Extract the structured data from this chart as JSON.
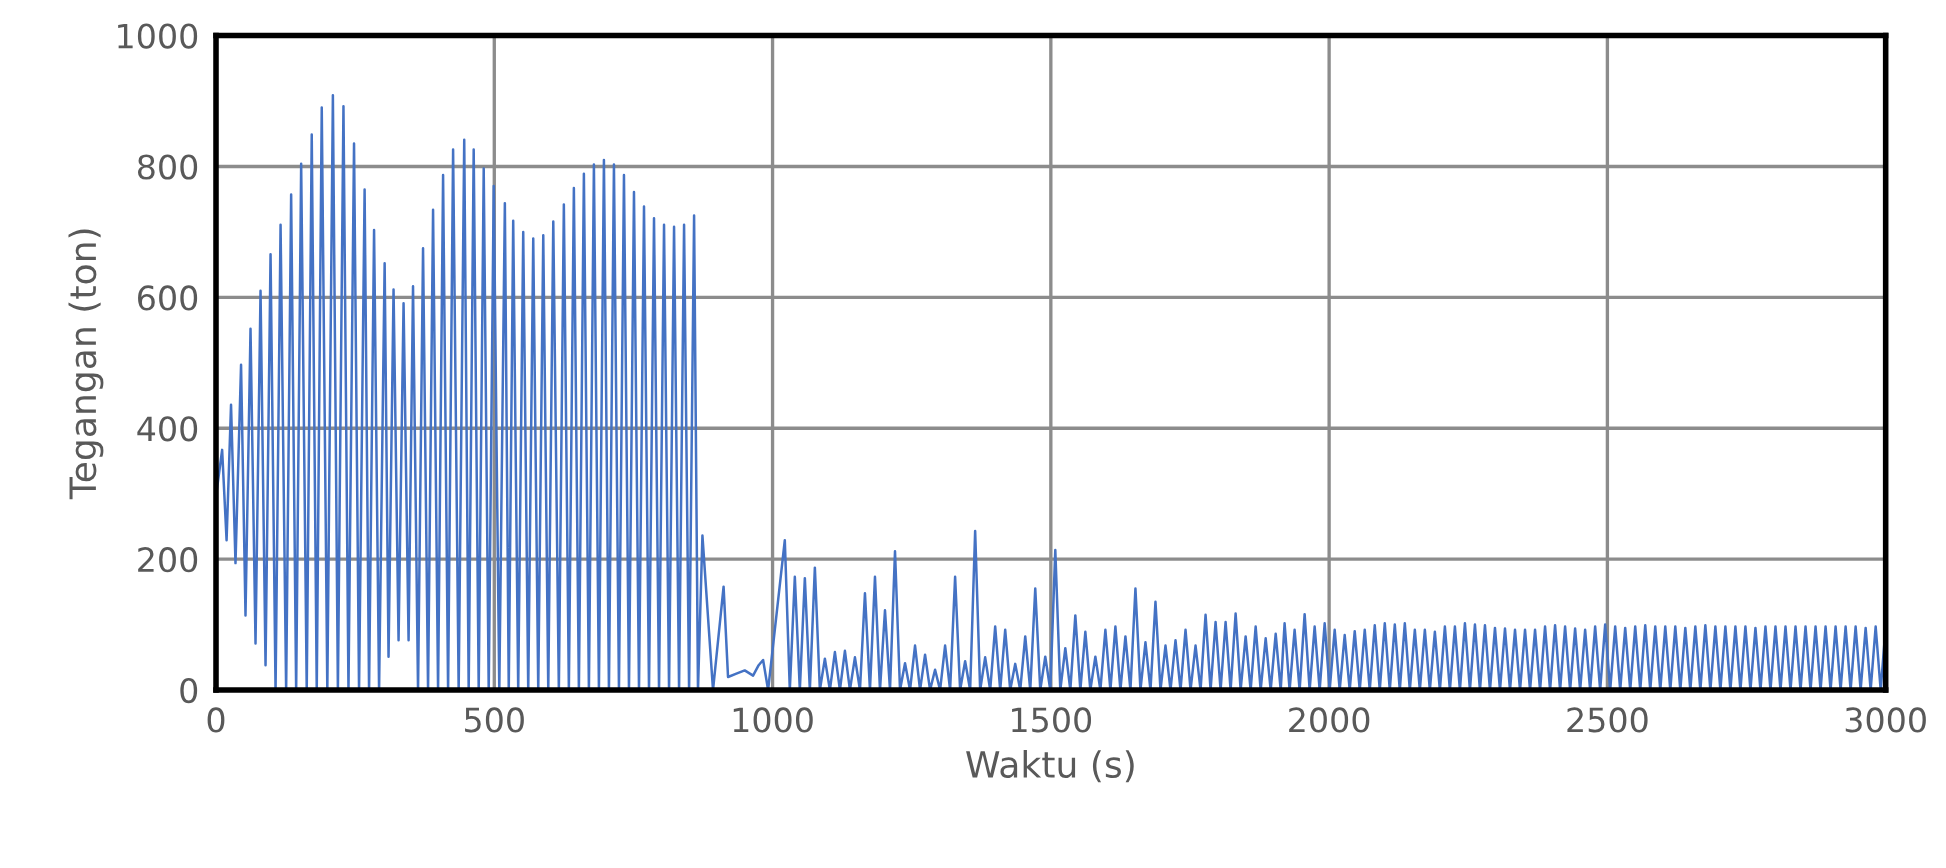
{
  "chart_data": {
    "type": "line",
    "xlabel": "Waktu (s)",
    "ylabel": "Tegangan (ton)",
    "xlim": [
      0,
      3000
    ],
    "xticks": [
      0,
      500,
      1000,
      1500,
      2000,
      2500,
      3000
    ],
    "ylim": [
      0,
      1000
    ],
    "yticks": [
      0,
      200,
      400,
      600,
      800,
      1000
    ],
    "grid": true,
    "legend": false,
    "marker": "none",
    "line_style": "solid",
    "series": [
      {
        "color": "#4472c4",
        "x": [
          0,
          11,
          19,
          27,
          35,
          45,
          53,
          62,
          71,
          80,
          89,
          98,
          107,
          116,
          126,
          135,
          144,
          153,
          163,
          172,
          181,
          190,
          200,
          210,
          219,
          229,
          238,
          248,
          257,
          267,
          275,
          284,
          293,
          303,
          310,
          319,
          328,
          337,
          346,
          354,
          363,
          372,
          381,
          390,
          399,
          408,
          417,
          426,
          436,
          446,
          454,
          463,
          472,
          481,
          490,
          499,
          509,
          519,
          526,
          534,
          543,
          552,
          561,
          570,
          579,
          588,
          597,
          606,
          616,
          625,
          634,
          643,
          652,
          661,
          670,
          679,
          688,
          697,
          706,
          715,
          724,
          733,
          742,
          751,
          760,
          769,
          778,
          787,
          796,
          805,
          814,
          823,
          832,
          841,
          850,
          859,
          866,
          874,
          893,
          912,
          920,
          935,
          950,
          965,
          975,
          983,
          992,
          1022,
          1031,
          1040,
          1049,
          1058,
          1067,
          1076,
          1085,
          1094,
          1103,
          1112,
          1121,
          1130,
          1139,
          1148,
          1157,
          1166,
          1175,
          1184,
          1193,
          1202,
          1211,
          1220,
          1229,
          1238,
          1247,
          1256,
          1265,
          1274,
          1283,
          1292,
          1301,
          1310,
          1319,
          1328,
          1337,
          1346,
          1355,
          1364,
          1373,
          1382,
          1391,
          1400,
          1409,
          1418,
          1427,
          1436,
          1445,
          1454,
          1463,
          1472,
          1481,
          1490,
          1499,
          1508,
          1517,
          1526,
          1535,
          1544,
          1553,
          1562,
          1571,
          1580,
          1589,
          1598,
          1607,
          1616,
          1625,
          1634,
          1643,
          1652,
          1661,
          1670,
          1679,
          1688,
          1697,
          1706,
          1715,
          1724,
          1733,
          1742,
          1751,
          1760,
          1769,
          1778,
          1787,
          1796,
          1805,
          1814,
          1823,
          1832,
          1841,
          1850,
          1859,
          1868,
          1877,
          1886,
          1895,
          1904,
          1913,
          1920,
          1929,
          1938,
          1947,
          1956,
          1965,
          1974,
          1983,
          1992,
          2001,
          2010,
          2019,
          2028,
          2037,
          2046,
          2055,
          2064,
          2073,
          2082,
          2091,
          2100,
          2109,
          2118,
          2127,
          2136,
          2145,
          2154,
          2163,
          2172,
          2181,
          2190,
          2199,
          2208,
          2217,
          2226,
          2235,
          2244,
          2253,
          2262,
          2271,
          2280,
          2289,
          2298,
          2307,
          2316,
          2325,
          2334,
          2343,
          2352,
          2361,
          2370,
          2379,
          2388,
          2397,
          2406,
          2415,
          2424,
          2433,
          2442,
          2451,
          2460,
          2469,
          2478,
          2487,
          2496,
          2505,
          2514,
          2523,
          2532,
          2541,
          2550,
          2559,
          2568,
          2577,
          2586,
          2595,
          2604,
          2613,
          2622,
          2631,
          2640,
          2649,
          2658,
          2667,
          2676,
          2685,
          2694,
          2703,
          2712,
          2721,
          2730,
          2739,
          2748,
          2757,
          2766,
          2775,
          2784,
          2793,
          2802,
          2811,
          2820,
          2829,
          2838,
          2847,
          2856,
          2865,
          2874,
          2883,
          2892,
          2901,
          2910,
          2919,
          2928,
          2937,
          2946,
          2955,
          2964,
          2973,
          2982,
          2991,
          3000
        ],
        "values": [
          296,
          367,
          229,
          436,
          194,
          497,
          114,
          552,
          71,
          610,
          38,
          666,
          0,
          711,
          0,
          757,
          0,
          804,
          0,
          849,
          0,
          890,
          0,
          909,
          0,
          892,
          0,
          835,
          0,
          765,
          0,
          703,
          0,
          652,
          51,
          612,
          76,
          591,
          76,
          617,
          0,
          675,
          0,
          734,
          0,
          787,
          0,
          826,
          0,
          841,
          0,
          826,
          0,
          797,
          0,
          770,
          0,
          744,
          0,
          717,
          0,
          700,
          0,
          690,
          0,
          695,
          0,
          716,
          0,
          742,
          0,
          767,
          0,
          789,
          0,
          803,
          0,
          810,
          0,
          803,
          0,
          787,
          0,
          761,
          0,
          739,
          0,
          721,
          0,
          711,
          0,
          708,
          0,
          711,
          0,
          725,
          0,
          236,
          0,
          158,
          20,
          25,
          30,
          22,
          38,
          46,
          0,
          229,
          0,
          173,
          0,
          171,
          0,
          187,
          0,
          48,
          0,
          58,
          0,
          60,
          0,
          50,
          0,
          148,
          0,
          173,
          0,
          122,
          0,
          212,
          0,
          41,
          0,
          68,
          0,
          54,
          0,
          31,
          0,
          68,
          0,
          173,
          0,
          44,
          0,
          243,
          0,
          50,
          0,
          97,
          0,
          92,
          0,
          40,
          0,
          82,
          0,
          155,
          0,
          51,
          0,
          214,
          0,
          64,
          0,
          114,
          0,
          89,
          0,
          51,
          0,
          92,
          0,
          97,
          0,
          82,
          0,
          155,
          0,
          73,
          0,
          135,
          0,
          68,
          0,
          76,
          0,
          92,
          0,
          68,
          0,
          115,
          0,
          104,
          0,
          104,
          0,
          117,
          0,
          82,
          0,
          97,
          0,
          79,
          0,
          86,
          0,
          102,
          0,
          92,
          0,
          116,
          0,
          97,
          0,
          102,
          0,
          92,
          0,
          84,
          0,
          90,
          0,
          92,
          0,
          99,
          0,
          102,
          0,
          100,
          0,
          102,
          0,
          92,
          0,
          92,
          0,
          89,
          0,
          97,
          0,
          97,
          0,
          102,
          0,
          100,
          0,
          99,
          0,
          95,
          0,
          94,
          0,
          92,
          0,
          92,
          0,
          92,
          0,
          97,
          0,
          99,
          0,
          97,
          0,
          94,
          0,
          92,
          0,
          97,
          0,
          100,
          0,
          97,
          0,
          95,
          0,
          97,
          0,
          99,
          0,
          97,
          0,
          97,
          0,
          97,
          0,
          95,
          0,
          97,
          0,
          99,
          0,
          97,
          0,
          97,
          0,
          97,
          0,
          97,
          0,
          95,
          0,
          97,
          0,
          97,
          0,
          97,
          0,
          97,
          0,
          97,
          0,
          97,
          0,
          97,
          0,
          97,
          0,
          97,
          0,
          97,
          0,
          95,
          0,
          97,
          0,
          97
        ]
      }
    ]
  }
}
